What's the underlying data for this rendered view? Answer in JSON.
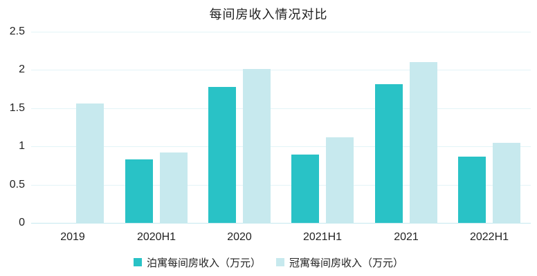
{
  "chart_data": {
    "type": "bar",
    "title": "每间房收入情况对比",
    "categories": [
      "2019",
      "2020H1",
      "2020",
      "2021H1",
      "2021",
      "2022H1"
    ],
    "series": [
      {
        "name": "泊寓每间房收入（万元）",
        "color": "#29C2C6",
        "values": [
          0,
          0.83,
          1.78,
          0.89,
          1.81,
          0.87
        ]
      },
      {
        "name": "冠寓每间房收入（万元）",
        "color": "#C7E9EE",
        "values": [
          1.56,
          0.92,
          2.01,
          1.12,
          2.1,
          1.05
        ]
      }
    ],
    "xlabel": "",
    "ylabel": "",
    "ylim": [
      0,
      2.5
    ],
    "yticks": [
      "0",
      "0.5",
      "1",
      "1.5",
      "2",
      "2.5"
    ],
    "grid": true,
    "legend_position": "bottom"
  },
  "colors": {
    "gridline": "#E3F4F7",
    "axis_line": "#C6E9EF",
    "text": "#222222",
    "title_text": "#1d1d1d",
    "background": "#ffffff"
  }
}
